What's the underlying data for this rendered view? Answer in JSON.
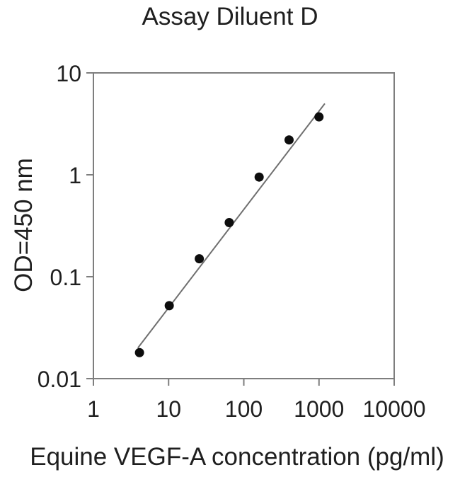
{
  "chart_data": {
    "type": "scatter",
    "title": "Assay Diluent D",
    "xlabel": "Equine VEGF-A concentration (pg/ml)",
    "ylabel": "OD=450 nm",
    "x_scale": "log",
    "y_scale": "log",
    "xlim": [
      1,
      10000
    ],
    "ylim": [
      0.01,
      10
    ],
    "x_ticks": [
      1,
      10,
      100,
      1000,
      10000
    ],
    "x_tick_labels": [
      "1",
      "10",
      "100",
      "1000",
      "10000"
    ],
    "y_ticks": [
      10,
      1,
      0.1,
      0.01
    ],
    "y_tick_labels": [
      "10",
      "1",
      "0.1",
      "0.01"
    ],
    "grid": false,
    "legend": "none",
    "series": [
      {
        "name": "fit-line",
        "type": "line",
        "color": "#6f6f6f",
        "x": [
          3.9,
          1195
        ],
        "y": [
          0.02,
          5.0
        ]
      },
      {
        "name": "standard-curve-points",
        "type": "scatter",
        "marker": "filled-circle",
        "color": "#0d0d0d",
        "x": [
          4.1,
          10.2,
          25.6,
          64,
          160,
          400,
          1000
        ],
        "y": [
          0.018,
          0.052,
          0.15,
          0.34,
          0.95,
          2.2,
          3.7
        ]
      }
    ]
  },
  "colors": {
    "background": "#ffffff",
    "text": "#1f1f1f",
    "axis": "#7e7e7e",
    "trendline": "#6f6f6f",
    "marker": "#0d0d0d"
  }
}
